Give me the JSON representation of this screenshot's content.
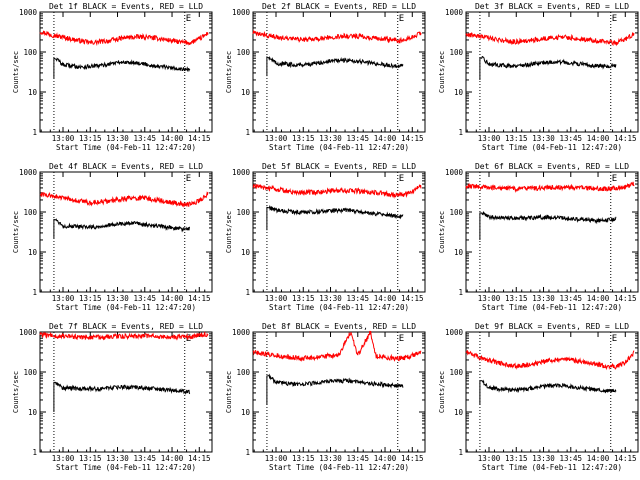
{
  "colors": {
    "events": "#000000",
    "lld": "#ff0000",
    "axis": "#000000",
    "background": "#ffffff"
  },
  "shared_axes": {
    "ylabel": "Counts/sec",
    "xlabel": "Start Time (04-Feb-11 12:47:20)",
    "x_ticks": [
      "13:00",
      "13:15",
      "13:30",
      "13:45",
      "14:00",
      "14:15"
    ],
    "x_tick_hours": [
      13.0,
      13.25,
      13.5,
      13.75,
      14.0,
      14.25
    ],
    "y_ticks": [
      "1",
      "10",
      "100",
      "1000"
    ],
    "y_tick_values": [
      1,
      10,
      100,
      1000
    ],
    "marker_E": "E"
  },
  "chart_data": [
    {
      "type": "line",
      "title": "Det 1f BLACK = Events, RED = LLD",
      "xlabel": "Start Time (04-Feb-11 12:47:20)",
      "ylabel": "Counts/sec",
      "xlim": [
        "12:47:20",
        "14:22"
      ],
      "ylim": [
        1,
        1000
      ],
      "yscale": "log",
      "vlines": [
        "12:55",
        "14:07"
      ],
      "series": [
        {
          "color": "#ff0000",
          "x": [
            "12:47",
            "12:55",
            "13:05",
            "13:15",
            "13:25",
            "13:35",
            "13:45",
            "13:55",
            "14:05",
            "14:10",
            "14:15",
            "14:20"
          ],
          "values": [
            330,
            260,
            210,
            170,
            190,
            230,
            240,
            210,
            175,
            170,
            210,
            300
          ]
        },
        {
          "color": "#000000",
          "start": "12:55",
          "jump_from": 22,
          "x": [
            "12:56",
            "13:00",
            "13:10",
            "13:20",
            "13:30",
            "13:40",
            "13:50",
            "14:00",
            "14:05",
            "14:10"
          ],
          "values": [
            70,
            48,
            42,
            45,
            55,
            55,
            45,
            40,
            38,
            35
          ]
        }
      ]
    },
    {
      "type": "line",
      "title": "Det 2f BLACK = Events, RED = LLD",
      "xlabel": "Start Time (04-Feb-11 12:47:20)",
      "ylabel": "Counts/sec",
      "xlim": [
        "12:47:20",
        "14:22"
      ],
      "ylim": [
        1,
        1000
      ],
      "yscale": "log",
      "vlines": [
        "12:55",
        "14:07"
      ],
      "series": [
        {
          "color": "#ff0000",
          "x": [
            "12:47",
            "12:55",
            "13:05",
            "13:15",
            "13:25",
            "13:35",
            "13:45",
            "13:55",
            "14:05",
            "14:10",
            "14:15",
            "14:20"
          ],
          "values": [
            300,
            260,
            220,
            200,
            220,
            250,
            250,
            220,
            200,
            190,
            230,
            310
          ]
        },
        {
          "color": "#000000",
          "start": "12:55",
          "jump_from": 25,
          "x": [
            "12:56",
            "13:00",
            "13:10",
            "13:20",
            "13:30",
            "13:40",
            "13:50",
            "14:00",
            "14:05",
            "14:10"
          ],
          "values": [
            75,
            52,
            48,
            50,
            60,
            62,
            55,
            48,
            45,
            45
          ]
        }
      ]
    },
    {
      "type": "line",
      "title": "Det 3f BLACK = Events, RED = LLD",
      "xlabel": "Start Time (04-Feb-11 12:47:20)",
      "ylabel": "Counts/sec",
      "xlim": [
        "12:47:20",
        "14:22"
      ],
      "ylim": [
        1,
        1000
      ],
      "yscale": "log",
      "vlines": [
        "12:55",
        "14:07"
      ],
      "series": [
        {
          "color": "#ff0000",
          "x": [
            "12:47",
            "12:55",
            "13:05",
            "13:15",
            "13:25",
            "13:35",
            "13:45",
            "13:55",
            "14:05",
            "14:10",
            "14:15",
            "14:20"
          ],
          "values": [
            280,
            250,
            200,
            180,
            200,
            230,
            230,
            200,
            175,
            170,
            210,
            290
          ]
        },
        {
          "color": "#000000",
          "start": "12:55",
          "jump_from": 20,
          "x": [
            "12:56",
            "13:00",
            "13:10",
            "13:20",
            "13:30",
            "13:40",
            "13:50",
            "14:00",
            "14:05",
            "14:10"
          ],
          "values": [
            72,
            50,
            45,
            47,
            55,
            56,
            50,
            45,
            44,
            45
          ]
        }
      ]
    },
    {
      "type": "line",
      "title": "Det 4f BLACK = Events, RED = LLD",
      "xlabel": "Start Time (04-Feb-11 12:47:20)",
      "ylabel": "Counts/sec",
      "xlim": [
        "12:47:20",
        "14:22"
      ],
      "ylim": [
        1,
        1000
      ],
      "yscale": "log",
      "vlines": [
        "12:55",
        "14:07"
      ],
      "series": [
        {
          "color": "#ff0000",
          "x": [
            "12:47",
            "12:55",
            "13:05",
            "13:15",
            "13:25",
            "13:35",
            "13:45",
            "13:55",
            "14:05",
            "14:10",
            "14:15",
            "14:20"
          ],
          "values": [
            280,
            250,
            200,
            170,
            190,
            220,
            220,
            190,
            160,
            155,
            190,
            290
          ]
        },
        {
          "color": "#000000",
          "start": "12:55",
          "jump_from": 22,
          "x": [
            "12:56",
            "13:00",
            "13:10",
            "13:20",
            "13:30",
            "13:40",
            "13:50",
            "14:00",
            "14:05",
            "14:10"
          ],
          "values": [
            65,
            45,
            42,
            43,
            50,
            52,
            45,
            40,
            38,
            38
          ]
        }
      ]
    },
    {
      "type": "line",
      "title": "Det 5f BLACK = Events, RED = LLD",
      "xlabel": "Start Time (04-Feb-11 12:47:20)",
      "ylabel": "Counts/sec",
      "xlim": [
        "12:47:20",
        "14:22"
      ],
      "ylim": [
        1,
        1000
      ],
      "yscale": "log",
      "vlines": [
        "12:55",
        "14:07"
      ],
      "series": [
        {
          "color": "#ff0000",
          "x": [
            "12:47",
            "12:55",
            "13:05",
            "13:15",
            "13:25",
            "13:35",
            "13:45",
            "13:55",
            "14:05",
            "14:10",
            "14:15",
            "14:20"
          ],
          "values": [
            450,
            400,
            340,
            300,
            320,
            350,
            340,
            300,
            270,
            270,
            320,
            450
          ]
        },
        {
          "color": "#000000",
          "start": "12:55",
          "jump_from": 35,
          "x": [
            "12:56",
            "13:00",
            "13:10",
            "13:20",
            "13:30",
            "13:40",
            "13:50",
            "14:00",
            "14:05",
            "14:10"
          ],
          "values": [
            130,
            110,
            100,
            100,
            110,
            110,
            95,
            85,
            80,
            78
          ]
        }
      ]
    },
    {
      "type": "line",
      "title": "Det 6f BLACK = Events, RED = LLD",
      "xlabel": "Start Time (04-Feb-11 12:47:20)",
      "ylabel": "Counts/sec",
      "xlim": [
        "12:47:20",
        "14:22"
      ],
      "ylim": [
        1,
        1000
      ],
      "yscale": "log",
      "vlines": [
        "12:55",
        "14:07"
      ],
      "series": [
        {
          "color": "#ff0000",
          "x": [
            "12:47",
            "12:55",
            "13:05",
            "13:15",
            "13:25",
            "13:35",
            "13:45",
            "13:55",
            "14:05",
            "14:10",
            "14:15",
            "14:20"
          ],
          "values": [
            450,
            430,
            400,
            380,
            390,
            410,
            410,
            390,
            380,
            390,
            420,
            520
          ]
        },
        {
          "color": "#000000",
          "start": "12:55",
          "jump_from": 20,
          "x": [
            "12:56",
            "13:00",
            "13:10",
            "13:20",
            "13:30",
            "13:40",
            "13:50",
            "14:00",
            "14:05",
            "14:10"
          ],
          "values": [
            95,
            75,
            70,
            70,
            75,
            72,
            65,
            60,
            62,
            68
          ]
        }
      ]
    },
    {
      "type": "line",
      "title": "Det 7f BLACK = Events, RED = LLD",
      "xlabel": "Start Time (04-Feb-11 12:47:20)",
      "ylabel": "Counts/sec",
      "xlim": [
        "12:47:20",
        "14:22"
      ],
      "ylim": [
        1,
        1000
      ],
      "yscale": "log",
      "vlines": [
        "12:55",
        "14:07"
      ],
      "series": [
        {
          "color": "#ff0000",
          "x": [
            "12:47",
            "12:55",
            "13:05",
            "13:15",
            "13:25",
            "13:35",
            "13:45",
            "13:55",
            "14:05",
            "14:10",
            "14:15",
            "14:20"
          ],
          "values": [
            850,
            800,
            760,
            740,
            760,
            790,
            790,
            760,
            740,
            760,
            820,
            900
          ]
        },
        {
          "color": "#000000",
          "start": "12:55",
          "jump_from": 10,
          "x": [
            "12:56",
            "13:00",
            "13:10",
            "13:20",
            "13:30",
            "13:40",
            "13:50",
            "14:00",
            "14:05",
            "14:10"
          ],
          "values": [
            55,
            40,
            38,
            38,
            42,
            42,
            38,
            35,
            33,
            32
          ]
        }
      ]
    },
    {
      "type": "line",
      "title": "Det 8f BLACK = Events, RED = LLD",
      "xlabel": "Start Time (04-Feb-11 12:47:20)",
      "ylabel": "Counts/sec",
      "xlim": [
        "12:47:20",
        "14:22"
      ],
      "ylim": [
        1,
        1000
      ],
      "yscale": "log",
      "vlines": [
        "12:55",
        "14:07"
      ],
      "series": [
        {
          "color": "#ff0000",
          "x": [
            "12:47",
            "12:55",
            "13:05",
            "13:15",
            "13:25",
            "13:35",
            "13:41",
            "13:45",
            "13:52",
            "13:55",
            "14:05",
            "14:10",
            "14:15",
            "14:20"
          ],
          "values": [
            320,
            280,
            240,
            220,
            240,
            270,
            1000,
            260,
            1000,
            250,
            220,
            220,
            260,
            330
          ]
        },
        {
          "color": "#000000",
          "start": "12:55",
          "jump_from": 15,
          "x": [
            "12:56",
            "13:00",
            "13:10",
            "13:20",
            "13:30",
            "13:40",
            "13:50",
            "14:00",
            "14:05",
            "14:10"
          ],
          "values": [
            80,
            55,
            50,
            52,
            58,
            60,
            52,
            48,
            45,
            45
          ]
        }
      ]
    },
    {
      "type": "line",
      "title": "Det 9f BLACK = Events, RED = LLD",
      "xlabel": "Start Time (04-Feb-11 12:47:20)",
      "ylabel": "Counts/sec",
      "xlim": [
        "12:47:20",
        "14:22"
      ],
      "ylim": [
        1,
        1000
      ],
      "yscale": "log",
      "vlines": [
        "12:55",
        "14:07"
      ],
      "series": [
        {
          "color": "#ff0000",
          "x": [
            "12:47",
            "12:55",
            "13:05",
            "13:15",
            "13:25",
            "13:35",
            "13:45",
            "13:55",
            "14:05",
            "14:10",
            "14:15",
            "14:20"
          ],
          "values": [
            320,
            230,
            170,
            140,
            160,
            200,
            200,
            170,
            140,
            135,
            170,
            320
          ]
        },
        {
          "color": "#000000",
          "start": "12:55",
          "jump_from": 15,
          "x": [
            "12:56",
            "13:00",
            "13:10",
            "13:20",
            "13:30",
            "13:40",
            "13:50",
            "14:00",
            "14:05",
            "14:10"
          ],
          "values": [
            60,
            40,
            36,
            37,
            44,
            46,
            40,
            36,
            34,
            36
          ]
        }
      ]
    }
  ]
}
